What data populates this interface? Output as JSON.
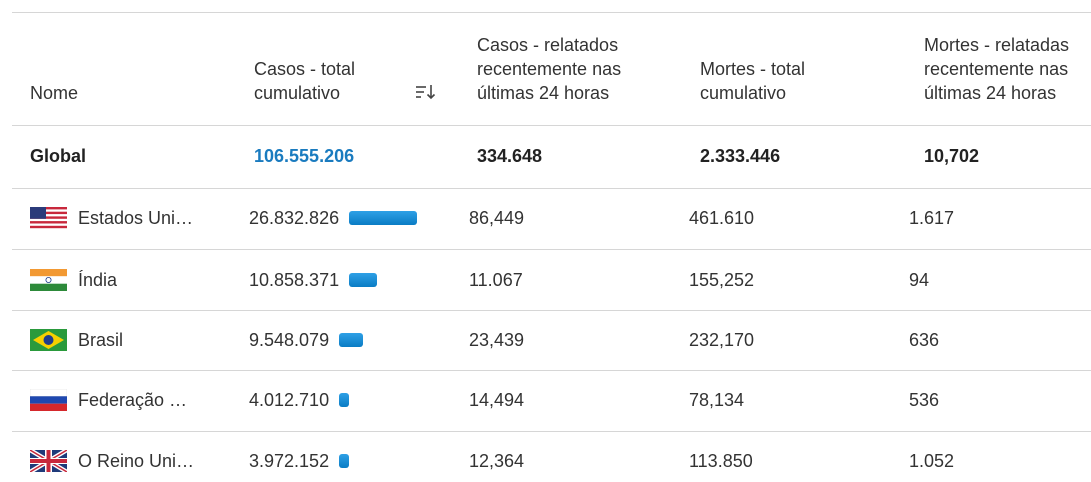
{
  "table": {
    "headers": [
      [
        "Nome"
      ],
      [
        "Casos - total",
        "cumulativo"
      ],
      [
        "Casos - relatados",
        "recentemente nas",
        "últimas 24 horas"
      ],
      [
        "Mortes - total",
        "cumulativo"
      ],
      [
        "Mortes - relatadas",
        "recentemente nas",
        "últimas 24 horas"
      ]
    ],
    "global": {
      "name": "Global",
      "cases": "106.555.206",
      "recent_cases": "334.648",
      "deaths": "2.333.446",
      "recent_deaths": "10,702"
    },
    "rows": [
      {
        "name": "Estados Uni…",
        "cases": 26832826,
        "cases_label": "26.832.826",
        "recent_cases": "86,449",
        "deaths": "461.610",
        "recent_deaths": "1.617"
      },
      {
        "name": "Índia",
        "cases": 10858371,
        "cases_label": "10.858.371",
        "recent_cases": "11.067",
        "deaths": "155,252",
        "recent_deaths": "94"
      },
      {
        "name": "Brasil",
        "cases": 9548079,
        "cases_label": "9.548.079",
        "recent_cases": "23,439",
        "deaths": "232,170",
        "recent_deaths": "636"
      },
      {
        "name": "Federação …",
        "cases": 4012710,
        "cases_label": "4.012.710",
        "recent_cases": "14,494",
        "deaths": "78,134",
        "recent_deaths": "536"
      },
      {
        "name": "O Reino Uni…",
        "cases": 3972152,
        "cases_label": "3.972.152",
        "recent_cases": "12,364",
        "deaths": "113.850",
        "recent_deaths": "1.052"
      }
    ]
  }
}
